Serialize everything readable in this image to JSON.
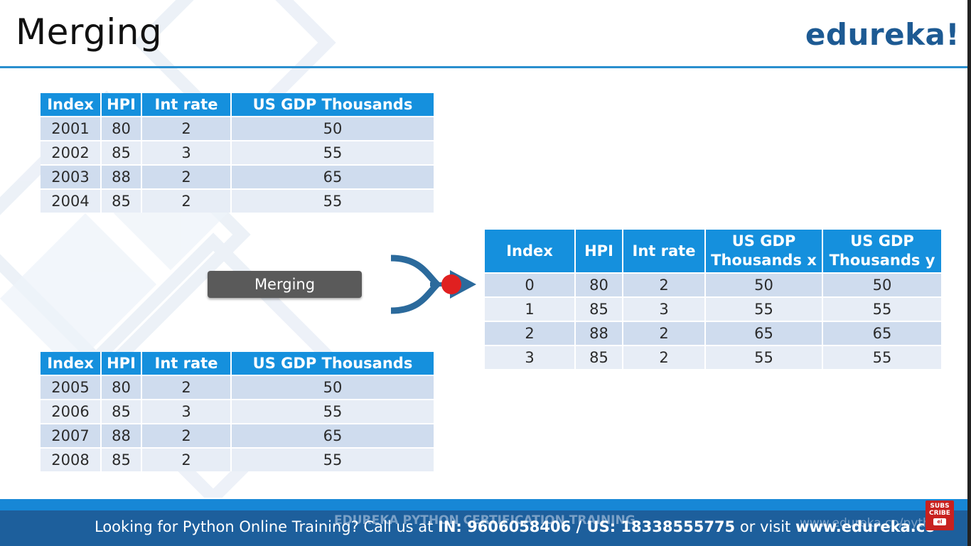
{
  "slide": {
    "title": "Merging",
    "logo": "edureka!",
    "merge_label": "Merging"
  },
  "table_top": {
    "headers": [
      "Index",
      "HPI",
      "Int rate",
      "US GDP Thousands"
    ],
    "rows": [
      [
        "2001",
        "80",
        "2",
        "50"
      ],
      [
        "2002",
        "85",
        "3",
        "55"
      ],
      [
        "2003",
        "88",
        "2",
        "65"
      ],
      [
        "2004",
        "85",
        "2",
        "55"
      ]
    ]
  },
  "table_bottom": {
    "headers": [
      "Index",
      "HPI",
      "Int rate",
      "US GDP Thousands"
    ],
    "rows": [
      [
        "2005",
        "80",
        "2",
        "50"
      ],
      [
        "2006",
        "85",
        "3",
        "55"
      ],
      [
        "2007",
        "88",
        "2",
        "65"
      ],
      [
        "2008",
        "85",
        "2",
        "55"
      ]
    ]
  },
  "table_result": {
    "headers": [
      "Index",
      "HPI",
      "Int rate",
      "US GDP\nThousands x",
      "US GDP\nThousands y"
    ],
    "rows": [
      [
        "0",
        "80",
        "2",
        "50",
        "50"
      ],
      [
        "1",
        "85",
        "3",
        "55",
        "55"
      ],
      [
        "2",
        "88",
        "2",
        "65",
        "65"
      ],
      [
        "3",
        "85",
        "2",
        "55",
        "55"
      ]
    ]
  },
  "footer": {
    "lead": "Looking for Python Online Training? Call us at ",
    "phone_in": "IN: 9606058406 / US: 18338555775",
    "mid": " or visit ",
    "site": "www.edureka.co",
    "watermark": "EDUREKA PYTHON CERTIFICATION TRAINING",
    "watermark_url": "www.edureka.co/python",
    "subscribe_top": "SUBS",
    "subscribe_bottom": "CRIBE",
    "subscribe_play": "el"
  },
  "colors": {
    "header_blue": "#1590dd",
    "row_dark": "#cfdcee",
    "row_light": "#e7edf6",
    "logo_blue": "#1d5a93",
    "footer_blue": "#1d5f9c",
    "accent_red": "#e02020",
    "connector_blue": "#2b6a9c"
  }
}
